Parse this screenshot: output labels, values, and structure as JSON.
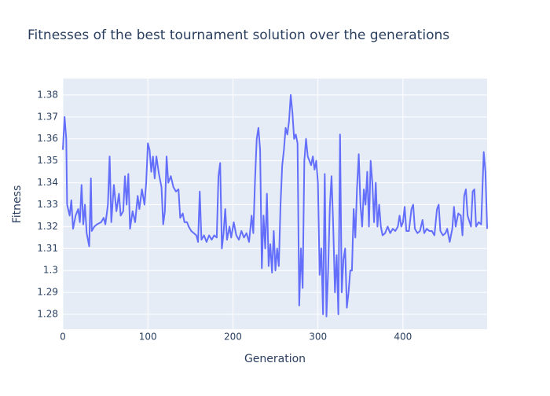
{
  "chart_data": {
    "type": "line",
    "title": "Fitnesses of the best tournament solution over the generations",
    "x_label": "Generation",
    "y_label": "Fitness",
    "x": [
      0,
      2,
      4,
      5,
      8,
      10,
      12,
      15,
      18,
      20,
      22,
      24,
      26,
      28,
      31,
      33,
      34,
      37,
      40,
      45,
      48,
      50,
      53,
      55,
      57,
      60,
      63,
      66,
      68,
      71,
      73,
      75,
      77,
      79,
      82,
      85,
      88,
      90,
      93,
      96,
      98,
      100,
      102,
      104,
      106,
      108,
      110,
      113,
      116,
      118,
      120,
      122,
      124,
      127,
      130,
      133,
      136,
      138,
      141,
      143,
      146,
      148,
      151,
      154,
      157,
      159,
      161,
      163,
      166,
      169,
      172,
      175,
      178,
      181,
      183,
      185,
      187,
      189,
      191,
      193,
      196,
      198,
      201,
      204,
      207,
      210,
      213,
      216,
      219,
      222,
      224,
      226,
      228,
      230,
      232,
      234,
      236,
      238,
      240,
      242,
      244,
      246,
      248,
      250,
      252,
      254,
      256,
      258,
      260,
      262,
      264,
      266,
      268,
      270,
      272,
      274,
      276,
      278,
      280,
      282,
      284,
      286,
      288,
      290,
      292,
      294,
      296,
      298,
      300,
      302,
      304,
      306,
      308,
      310,
      312,
      314,
      316,
      318,
      320,
      322,
      324,
      326,
      328,
      330,
      332,
      334,
      336,
      338,
      340,
      342,
      344,
      346,
      348,
      350,
      352,
      354,
      356,
      358,
      360,
      362,
      364,
      366,
      368,
      370,
      372,
      374,
      376,
      379,
      382,
      385,
      388,
      391,
      394,
      396,
      398,
      400,
      402,
      404,
      407,
      410,
      412,
      414,
      417,
      420,
      423,
      425,
      428,
      431,
      434,
      437,
      440,
      442,
      444,
      447,
      450,
      452,
      455,
      458,
      460,
      462,
      465,
      468,
      470,
      472,
      474,
      476,
      480,
      482,
      484,
      486,
      489,
      492,
      495,
      497,
      499
    ],
    "series": [
      {
        "name": "Fitness",
        "color": "#636efa",
        "values": [
          1.355,
          1.37,
          1.36,
          1.33,
          1.325,
          1.332,
          1.319,
          1.325,
          1.328,
          1.322,
          1.339,
          1.321,
          1.33,
          1.317,
          1.311,
          1.342,
          1.318,
          1.32,
          1.321,
          1.322,
          1.324,
          1.321,
          1.33,
          1.352,
          1.322,
          1.339,
          1.327,
          1.335,
          1.325,
          1.327,
          1.343,
          1.33,
          1.344,
          1.319,
          1.327,
          1.322,
          1.334,
          1.328,
          1.337,
          1.33,
          1.34,
          1.358,
          1.355,
          1.345,
          1.352,
          1.342,
          1.352,
          1.344,
          1.338,
          1.321,
          1.327,
          1.352,
          1.34,
          1.343,
          1.338,
          1.336,
          1.337,
          1.324,
          1.326,
          1.322,
          1.322,
          1.32,
          1.318,
          1.317,
          1.316,
          1.313,
          1.336,
          1.314,
          1.316,
          1.313,
          1.316,
          1.314,
          1.316,
          1.315,
          1.343,
          1.349,
          1.31,
          1.317,
          1.328,
          1.314,
          1.32,
          1.315,
          1.322,
          1.316,
          1.314,
          1.318,
          1.315,
          1.317,
          1.313,
          1.325,
          1.317,
          1.341,
          1.36,
          1.365,
          1.355,
          1.301,
          1.325,
          1.31,
          1.335,
          1.302,
          1.312,
          1.299,
          1.318,
          1.3,
          1.31,
          1.302,
          1.33,
          1.348,
          1.355,
          1.365,
          1.362,
          1.368,
          1.38,
          1.372,
          1.36,
          1.362,
          1.358,
          1.284,
          1.31,
          1.292,
          1.35,
          1.36,
          1.352,
          1.35,
          1.348,
          1.352,
          1.346,
          1.35,
          1.34,
          1.298,
          1.31,
          1.28,
          1.344,
          1.279,
          1.3,
          1.329,
          1.343,
          1.32,
          1.29,
          1.307,
          1.28,
          1.362,
          1.29,
          1.305,
          1.31,
          1.283,
          1.29,
          1.3,
          1.3,
          1.328,
          1.315,
          1.338,
          1.353,
          1.33,
          1.32,
          1.337,
          1.33,
          1.345,
          1.32,
          1.35,
          1.34,
          1.322,
          1.34,
          1.32,
          1.33,
          1.32,
          1.316,
          1.317,
          1.32,
          1.317,
          1.319,
          1.318,
          1.32,
          1.325,
          1.32,
          1.322,
          1.329,
          1.318,
          1.318,
          1.328,
          1.33,
          1.319,
          1.317,
          1.318,
          1.323,
          1.317,
          1.319,
          1.318,
          1.318,
          1.316,
          1.328,
          1.33,
          1.318,
          1.316,
          1.317,
          1.319,
          1.313,
          1.319,
          1.329,
          1.32,
          1.326,
          1.325,
          1.316,
          1.334,
          1.337,
          1.325,
          1.32,
          1.336,
          1.337,
          1.32,
          1.322,
          1.321,
          1.354,
          1.345,
          1.319
        ]
      }
    ],
    "xlim": [
      0,
      499
    ],
    "ylim": [
      1.2732,
      1.3875
    ],
    "xticks": [
      0,
      100,
      200,
      300,
      400
    ],
    "yticks": [
      1.28,
      1.29,
      1.3,
      1.31,
      1.32,
      1.33,
      1.34,
      1.35,
      1.36,
      1.37,
      1.38
    ],
    "grid": true
  }
}
